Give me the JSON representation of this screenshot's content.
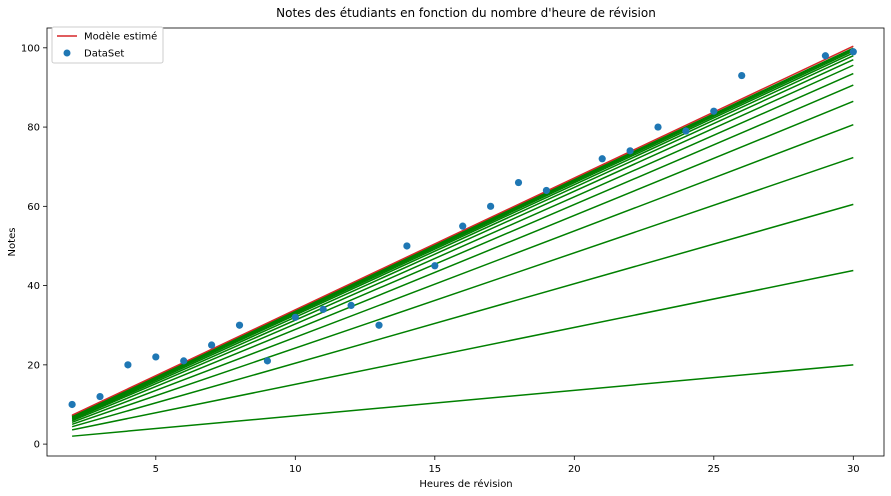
{
  "chart_data": {
    "type": "line",
    "title": "Notes des étudiants en fonction du nombre d'heure de révision",
    "xlabel": "Heures de révision",
    "ylabel": "Notes",
    "xlim": [
      1.1,
      31.1
    ],
    "ylim": [
      -3,
      105
    ],
    "xticks": [
      5,
      10,
      15,
      20,
      25,
      30
    ],
    "yticks": [
      0,
      20,
      40,
      60,
      80,
      100
    ],
    "grid": false,
    "legend_position": "top-left",
    "colors": {
      "dataset": "#1f77b4",
      "model": "#d62728",
      "iterations": "#008000"
    },
    "legend": [
      {
        "label": "Modèle estimé",
        "kind": "line",
        "color": "#d62728"
      },
      {
        "label": "DataSet",
        "kind": "point",
        "color": "#1f77b4"
      }
    ],
    "scatter": {
      "name": "DataSet",
      "x": [
        2,
        3,
        4,
        5,
        6,
        7,
        8,
        9,
        10,
        11,
        12,
        13,
        14,
        15,
        16,
        17,
        18,
        19,
        21,
        22,
        23,
        24,
        25,
        26,
        29,
        30
      ],
      "y": [
        10,
        12,
        20,
        22,
        21,
        25,
        30,
        21,
        32,
        34,
        35,
        30,
        50,
        45,
        55,
        60,
        66,
        64,
        72,
        74,
        80,
        79,
        84,
        93,
        98,
        99
      ]
    },
    "iteration_lines": [
      {
        "x": [
          2,
          30
        ],
        "y": [
          2.0,
          20.0
        ]
      },
      {
        "x": [
          2,
          30
        ],
        "y": [
          3.6,
          43.8
        ]
      },
      {
        "x": [
          2,
          30
        ],
        "y": [
          4.4,
          60.5
        ]
      },
      {
        "x": [
          2,
          30
        ],
        "y": [
          5.0,
          72.3
        ]
      },
      {
        "x": [
          2,
          30
        ],
        "y": [
          5.5,
          80.6
        ]
      },
      {
        "x": [
          2,
          30
        ],
        "y": [
          5.9,
          86.5
        ]
      },
      {
        "x": [
          2,
          30
        ],
        "y": [
          6.2,
          90.6
        ]
      },
      {
        "x": [
          2,
          30
        ],
        "y": [
          6.4,
          93.5
        ]
      },
      {
        "x": [
          2,
          30
        ],
        "y": [
          6.6,
          95.6
        ]
      },
      {
        "x": [
          2,
          30
        ],
        "y": [
          6.8,
          97.0
        ]
      },
      {
        "x": [
          2,
          30
        ],
        "y": [
          6.9,
          98.0
        ]
      },
      {
        "x": [
          2,
          30
        ],
        "y": [
          7.0,
          98.7
        ]
      },
      {
        "x": [
          2,
          30
        ],
        "y": [
          7.1,
          99.2
        ]
      },
      {
        "x": [
          2,
          30
        ],
        "y": [
          7.15,
          99.6
        ]
      },
      {
        "x": [
          2,
          30
        ],
        "y": [
          7.2,
          99.9
        ]
      }
    ],
    "model_line": {
      "name": "Modèle estimé",
      "x": [
        2,
        30
      ],
      "y": [
        7.3,
        100.4
      ]
    }
  }
}
